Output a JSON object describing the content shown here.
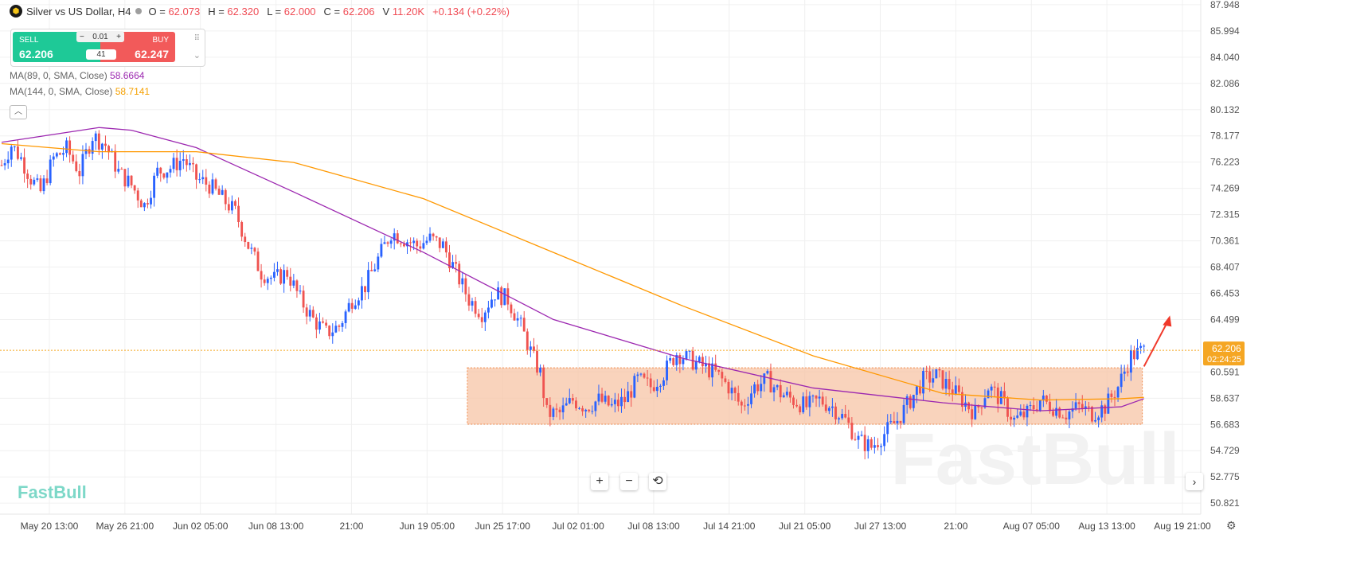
{
  "header": {
    "symbol": "Silver vs US Dollar, H4",
    "o_label": "O =",
    "o_value": "62.073",
    "h_label": "H =",
    "h_value": "62.320",
    "l_label": "L =",
    "l_value": "62.000",
    "c_label": "C =",
    "c_value": "62.206",
    "v_label": "V",
    "v_value": "11.20K",
    "change": "+0.134 (+0.22%)"
  },
  "trade": {
    "sell_label": "SELL",
    "sell_price": "62.206",
    "buy_label": "BUY",
    "buy_price": "62.247",
    "lot": "0.01",
    "spread": "41",
    "minus": "−",
    "plus": "+"
  },
  "indicators": {
    "ma89_label": "MA(89, 0, SMA, Close)",
    "ma89_value": "58.6664",
    "ma144_label": "MA(144, 0, SMA, Close)",
    "ma144_value": "58.7141"
  },
  "watermark": "FastBull",
  "logo": "FastBull",
  "current_price": "62.206",
  "countdown": "02:24:25",
  "colors": {
    "up": "#2962ff",
    "down": "#ef5350",
    "ma89": "#9c27b0",
    "ma144": "#ff9800",
    "zone": "#f7c4a6",
    "zone_border": "#f08a4b",
    "arrow": "#f0392b",
    "price_tag": "#f5a623"
  },
  "chart_data": {
    "type": "candlestick",
    "title": "Silver vs US Dollar, H4",
    "y_ticks": [
      "87.948",
      "85.994",
      "84.040",
      "82.086",
      "80.132",
      "78.177",
      "76.223",
      "74.269",
      "72.315",
      "70.361",
      "68.407",
      "66.453",
      "64.499",
      "60.591",
      "58.637",
      "56.683",
      "54.729",
      "52.775",
      "50.821"
    ],
    "ylim": [
      50.0,
      88.3
    ],
    "x_ticks": [
      "May 20 13:00",
      "May 26 21:00",
      "Jun 02 05:00",
      "Jun 08 13:00",
      "21:00",
      "Jun 19 05:00",
      "Jun 25 17:00",
      "Jul 02 01:00",
      "Jul 08 13:00",
      "Jul 14 21:00",
      "Jul 21 05:00",
      "Jul 27 13:00",
      "21:00",
      "Aug 07 05:00",
      "Aug 13 13:00",
      "Aug 19 21:00"
    ],
    "price_path": [
      [
        0,
        76.0
      ],
      [
        3,
        77.5
      ],
      [
        6,
        76.5
      ],
      [
        9,
        75.0
      ],
      [
        12,
        74.0
      ],
      [
        16,
        76.5
      ],
      [
        20,
        77.2
      ],
      [
        24,
        75.5
      ],
      [
        28,
        78.2
      ],
      [
        32,
        77.5
      ],
      [
        36,
        75.5
      ],
      [
        40,
        74.5
      ],
      [
        44,
        73.0
      ],
      [
        48,
        75.5
      ],
      [
        52,
        75.8
      ],
      [
        56,
        76.5
      ],
      [
        60,
        75.0
      ],
      [
        64,
        74.5
      ],
      [
        68,
        73.5
      ],
      [
        72,
        72.5
      ],
      [
        76,
        70.0
      ],
      [
        80,
        68.0
      ],
      [
        84,
        67.5
      ],
      [
        88,
        68.0
      ],
      [
        92,
        66.0
      ],
      [
        96,
        64.5
      ],
      [
        100,
        63.5
      ],
      [
        104,
        64.0
      ],
      [
        108,
        66.0
      ],
      [
        112,
        67.0
      ],
      [
        116,
        69.0
      ],
      [
        120,
        71.0
      ],
      [
        124,
        70.5
      ],
      [
        128,
        70.0
      ],
      [
        132,
        70.5
      ],
      [
        136,
        70.0
      ],
      [
        140,
        68.0
      ],
      [
        144,
        66.0
      ],
      [
        148,
        65.0
      ],
      [
        152,
        66.5
      ],
      [
        156,
        66.0
      ],
      [
        160,
        64.0
      ],
      [
        164,
        61.5
      ],
      [
        166,
        60.5
      ],
      [
        168,
        57.5
      ],
      [
        172,
        57.5
      ],
      [
        176,
        58.5
      ],
      [
        180,
        58.0
      ],
      [
        184,
        58.5
      ],
      [
        188,
        58.0
      ],
      [
        192,
        58.5
      ],
      [
        196,
        60.0
      ],
      [
        200,
        59.5
      ],
      [
        204,
        60.5
      ],
      [
        208,
        62.0
      ],
      [
        212,
        61.5
      ],
      [
        216,
        61.0
      ],
      [
        220,
        60.5
      ],
      [
        224,
        59.5
      ],
      [
        228,
        58.0
      ],
      [
        232,
        59.5
      ],
      [
        236,
        60.0
      ],
      [
        240,
        59.0
      ],
      [
        244,
        58.5
      ],
      [
        248,
        58.0
      ],
      [
        252,
        58.5
      ],
      [
        256,
        58.0
      ],
      [
        260,
        57.0
      ],
      [
        264,
        55.5
      ],
      [
        268,
        55.0
      ],
      [
        272,
        56.0
      ],
      [
        276,
        57.0
      ],
      [
        280,
        58.5
      ],
      [
        284,
        60.0
      ],
      [
        288,
        60.3
      ],
      [
        292,
        59.5
      ],
      [
        296,
        58.5
      ],
      [
        300,
        57.5
      ],
      [
        304,
        59.5
      ],
      [
        308,
        58.5
      ],
      [
        312,
        57.0
      ],
      [
        316,
        57.5
      ],
      [
        320,
        58.5
      ],
      [
        324,
        58.0
      ],
      [
        328,
        57.5
      ],
      [
        332,
        58.0
      ],
      [
        336,
        57.5
      ],
      [
        340,
        58.0
      ],
      [
        344,
        59.5
      ],
      [
        348,
        61.8
      ],
      [
        352,
        62.2
      ]
    ],
    "series": [
      {
        "name": "MA(89, 0, SMA, Close)",
        "x": [
          0,
          30,
          40,
          60,
          90,
          130,
          170,
          210,
          250,
          290,
          320,
          345,
          352
        ],
        "y": [
          77.7,
          78.8,
          78.6,
          77.3,
          74.0,
          69.5,
          64.5,
          61.6,
          59.4,
          58.3,
          57.7,
          58.0,
          58.6
        ]
      },
      {
        "name": "MA(144, 0, SMA, Close)",
        "x": [
          0,
          30,
          60,
          90,
          130,
          170,
          210,
          250,
          290,
          320,
          345,
          352
        ],
        "y": [
          77.6,
          77.0,
          77.0,
          76.2,
          73.5,
          69.5,
          65.5,
          61.8,
          59.0,
          58.5,
          58.6,
          58.7
        ]
      }
    ],
    "zone": {
      "x_start": 144,
      "x_end": 352,
      "y_low": 56.7,
      "y_high": 60.9
    },
    "projection": {
      "from": [
        352,
        61.0
      ],
      "to": [
        360,
        64.8
      ]
    }
  }
}
